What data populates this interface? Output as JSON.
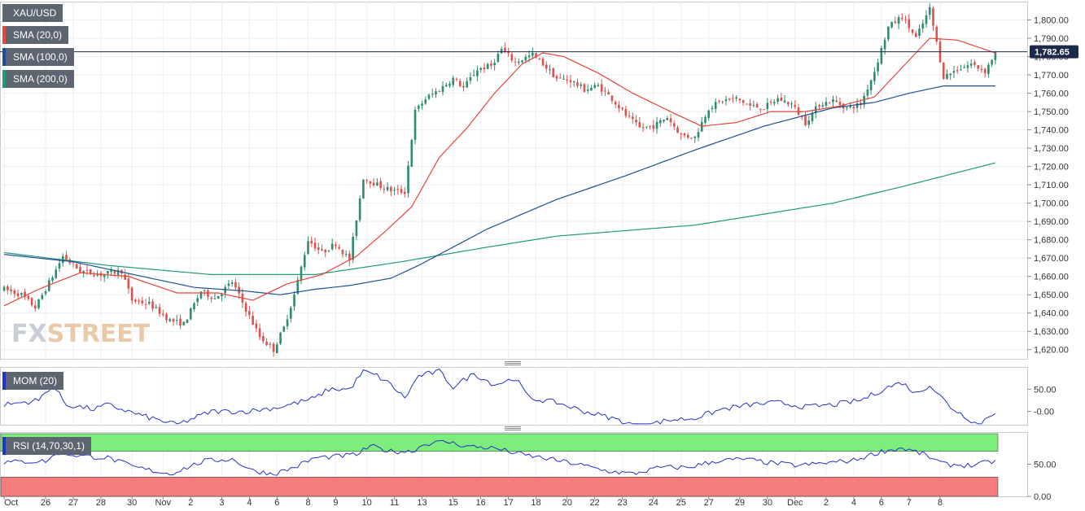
{
  "legends": {
    "symbol": "XAU/USD",
    "sma20": "SMA (20,0)",
    "sma100": "SMA (100,0)",
    "sma200": "SMA (200,0)",
    "mom": "MOM (20)",
    "rsi": "RSI (14,70,30,1)"
  },
  "watermark": {
    "part1": "FX",
    "part2": "STREET"
  },
  "colors": {
    "up": "#2f8c6e",
    "down": "#d9534f",
    "sma20": "#e8453c",
    "sma100": "#1f4e96",
    "sma200": "#1f9a7a",
    "indicator": "#2233cc",
    "rsi_overbought_band": "#7ded7b",
    "rsi_oversold_band": "#f47c7c",
    "price_line": "#1a2a4a",
    "price_badge": "#1a2a4a"
  },
  "current_price": {
    "value": 1782.65,
    "label": "1,782.65"
  },
  "chart_data": {
    "type": "candlestick",
    "panels": [
      {
        "name": "price",
        "ylim": [
          1615,
          1810
        ],
        "yticks": [
          1620,
          1630,
          1640,
          1650,
          1660,
          1670,
          1680,
          1690,
          1700,
          1710,
          1720,
          1730,
          1740,
          1750,
          1760,
          1770,
          1780,
          1790,
          1800
        ],
        "ytick_labels": [
          "1,620.00",
          "1,630.00",
          "1,640.00",
          "1,650.00",
          "1,660.00",
          "1,670.00",
          "1,680.00",
          "1,690.00",
          "1,700.00",
          "1,710.00",
          "1,720.00",
          "1,730.00",
          "1,740.00",
          "1,750.00",
          "1,760.00",
          "1,770.00",
          "1,780.00",
          "1,790.00",
          "1,800.00"
        ],
        "anchors": [
          [
            0,
            1653
          ],
          [
            5,
            1650
          ],
          [
            9,
            1643
          ],
          [
            14,
            1660
          ],
          [
            17,
            1671
          ],
          [
            22,
            1663
          ],
          [
            28,
            1661
          ],
          [
            34,
            1663
          ],
          [
            37,
            1647
          ],
          [
            42,
            1645
          ],
          [
            48,
            1636
          ],
          [
            52,
            1634
          ],
          [
            57,
            1652
          ],
          [
            61,
            1648
          ],
          [
            66,
            1657
          ],
          [
            70,
            1642
          ],
          [
            74,
            1627
          ],
          [
            78,
            1620
          ],
          [
            81,
            1632
          ],
          [
            84,
            1650
          ],
          [
            88,
            1680
          ],
          [
            92,
            1673
          ],
          [
            96,
            1678
          ],
          [
            100,
            1669
          ],
          [
            104,
            1714
          ],
          [
            108,
            1710
          ],
          [
            112,
            1707
          ],
          [
            116,
            1706
          ],
          [
            119,
            1750
          ],
          [
            122,
            1757
          ],
          [
            126,
            1762
          ],
          [
            130,
            1768
          ],
          [
            133,
            1763
          ],
          [
            137,
            1773
          ],
          [
            141,
            1775
          ],
          [
            144,
            1784
          ],
          [
            148,
            1777
          ],
          [
            153,
            1781
          ],
          [
            156,
            1776
          ],
          [
            160,
            1768
          ],
          [
            164,
            1767
          ],
          [
            168,
            1762
          ],
          [
            172,
            1764
          ],
          [
            176,
            1757
          ],
          [
            180,
            1748
          ],
          [
            184,
            1741
          ],
          [
            188,
            1742
          ],
          [
            192,
            1747
          ],
          [
            196,
            1737
          ],
          [
            200,
            1736
          ],
          [
            204,
            1752
          ],
          [
            208,
            1756
          ],
          [
            212,
            1757
          ],
          [
            216,
            1753
          ],
          [
            220,
            1752
          ],
          [
            224,
            1757
          ],
          [
            228,
            1754
          ],
          [
            232,
            1744
          ],
          [
            236,
            1754
          ],
          [
            240,
            1756
          ],
          [
            244,
            1752
          ],
          [
            248,
            1754
          ],
          [
            252,
            1772
          ],
          [
            256,
            1796
          ],
          [
            260,
            1802
          ],
          [
            264,
            1790
          ],
          [
            268,
            1806
          ],
          [
            272,
            1769
          ],
          [
            276,
            1773
          ],
          [
            280,
            1776
          ],
          [
            284,
            1772
          ],
          [
            287,
            1782
          ]
        ],
        "sma20_anchors": [
          [
            0,
            1644
          ],
          [
            10,
            1653
          ],
          [
            22,
            1662
          ],
          [
            36,
            1660
          ],
          [
            50,
            1651
          ],
          [
            62,
            1651
          ],
          [
            72,
            1647
          ],
          [
            82,
            1656
          ],
          [
            92,
            1661
          ],
          [
            102,
            1671
          ],
          [
            110,
            1684
          ],
          [
            118,
            1698
          ],
          [
            126,
            1725
          ],
          [
            134,
            1741
          ],
          [
            142,
            1760
          ],
          [
            150,
            1776
          ],
          [
            156,
            1782
          ],
          [
            162,
            1780
          ],
          [
            172,
            1771
          ],
          [
            182,
            1760
          ],
          [
            194,
            1749
          ],
          [
            202,
            1742
          ],
          [
            212,
            1744
          ],
          [
            222,
            1750
          ],
          [
            232,
            1750
          ],
          [
            242,
            1753
          ],
          [
            252,
            1758
          ],
          [
            262,
            1778
          ],
          [
            268,
            1790
          ],
          [
            276,
            1789
          ],
          [
            287,
            1782
          ]
        ],
        "sma100_anchors": [
          [
            0,
            1672
          ],
          [
            20,
            1668
          ],
          [
            40,
            1660
          ],
          [
            55,
            1654
          ],
          [
            70,
            1652
          ],
          [
            80,
            1650
          ],
          [
            90,
            1653
          ],
          [
            100,
            1655
          ],
          [
            112,
            1659
          ],
          [
            120,
            1666
          ],
          [
            140,
            1686
          ],
          [
            160,
            1702
          ],
          [
            180,
            1715
          ],
          [
            200,
            1729
          ],
          [
            220,
            1742
          ],
          [
            240,
            1752
          ],
          [
            252,
            1755
          ],
          [
            262,
            1760
          ],
          [
            272,
            1764
          ],
          [
            287,
            1764
          ]
        ],
        "sma200_anchors": [
          [
            0,
            1673
          ],
          [
            30,
            1666
          ],
          [
            60,
            1661
          ],
          [
            90,
            1661
          ],
          [
            115,
            1668
          ],
          [
            140,
            1676
          ],
          [
            160,
            1682
          ],
          [
            180,
            1685
          ],
          [
            200,
            1688
          ],
          [
            220,
            1694
          ],
          [
            240,
            1700
          ],
          [
            260,
            1709
          ],
          [
            287,
            1722
          ]
        ]
      },
      {
        "name": "momentum",
        "ylim": [
          -30,
          100
        ],
        "yticks": [
          0,
          50
        ],
        "ytick_labels": [
          "-0.00",
          "50.00"
        ],
        "anchors": [
          [
            0,
            15
          ],
          [
            10,
            25
          ],
          [
            14,
            60
          ],
          [
            18,
            15
          ],
          [
            26,
            5
          ],
          [
            30,
            15
          ],
          [
            40,
            -10
          ],
          [
            50,
            -30
          ],
          [
            60,
            0
          ],
          [
            70,
            0
          ],
          [
            80,
            10
          ],
          [
            90,
            30
          ],
          [
            94,
            50
          ],
          [
            100,
            50
          ],
          [
            104,
            90
          ],
          [
            108,
            80
          ],
          [
            112,
            60
          ],
          [
            116,
            30
          ],
          [
            120,
            80
          ],
          [
            126,
            90
          ],
          [
            130,
            55
          ],
          [
            136,
            85
          ],
          [
            142,
            60
          ],
          [
            148,
            75
          ],
          [
            152,
            30
          ],
          [
            160,
            20
          ],
          [
            168,
            0
          ],
          [
            176,
            -15
          ],
          [
            184,
            -35
          ],
          [
            192,
            -20
          ],
          [
            200,
            -15
          ],
          [
            208,
            5
          ],
          [
            216,
            15
          ],
          [
            224,
            20
          ],
          [
            232,
            10
          ],
          [
            240,
            15
          ],
          [
            248,
            25
          ],
          [
            256,
            55
          ],
          [
            260,
            65
          ],
          [
            264,
            40
          ],
          [
            268,
            60
          ],
          [
            274,
            10
          ],
          [
            282,
            -30
          ],
          [
            287,
            0
          ]
        ]
      },
      {
        "name": "rsi",
        "ylim": [
          0,
          100
        ],
        "yticks": [
          0,
          50
        ],
        "ytick_labels": [
          "0.00",
          "50.00"
        ],
        "overbought": 70,
        "oversold": 30,
        "anchors": [
          [
            0,
            53
          ],
          [
            12,
            55
          ],
          [
            16,
            68
          ],
          [
            22,
            63
          ],
          [
            30,
            60
          ],
          [
            38,
            45
          ],
          [
            48,
            35
          ],
          [
            58,
            55
          ],
          [
            66,
            58
          ],
          [
            72,
            40
          ],
          [
            78,
            35
          ],
          [
            84,
            45
          ],
          [
            90,
            60
          ],
          [
            96,
            62
          ],
          [
            102,
            65
          ],
          [
            106,
            78
          ],
          [
            112,
            70
          ],
          [
            118,
            70
          ],
          [
            122,
            82
          ],
          [
            128,
            85
          ],
          [
            134,
            78
          ],
          [
            142,
            75
          ],
          [
            150,
            65
          ],
          [
            158,
            58
          ],
          [
            166,
            50
          ],
          [
            174,
            40
          ],
          [
            182,
            35
          ],
          [
            190,
            45
          ],
          [
            198,
            45
          ],
          [
            206,
            55
          ],
          [
            214,
            58
          ],
          [
            222,
            52
          ],
          [
            230,
            48
          ],
          [
            238,
            52
          ],
          [
            246,
            56
          ],
          [
            254,
            70
          ],
          [
            260,
            75
          ],
          [
            266,
            66
          ],
          [
            272,
            50
          ],
          [
            280,
            48
          ],
          [
            287,
            55
          ]
        ]
      }
    ],
    "x_tick_labels": [
      "Oct",
      "26",
      "27",
      "28",
      "30",
      "Nov",
      "2",
      "3",
      "4",
      "6",
      "8",
      "9",
      "10",
      "11",
      "13",
      "15",
      "16",
      "17",
      "18",
      "20",
      "22",
      "23",
      "24",
      "25",
      "27",
      "29",
      "30",
      "Dec",
      "2",
      "4",
      "6",
      "7",
      "8"
    ],
    "x_tick_bars": [
      0,
      12,
      20,
      28,
      37,
      46,
      54,
      63,
      71,
      79,
      88,
      96,
      105,
      113,
      121,
      130,
      138,
      146,
      154,
      163,
      171,
      179,
      188,
      196,
      204,
      213,
      221,
      229,
      238,
      246,
      254,
      262,
      271
    ],
    "bars_total": 288
  }
}
